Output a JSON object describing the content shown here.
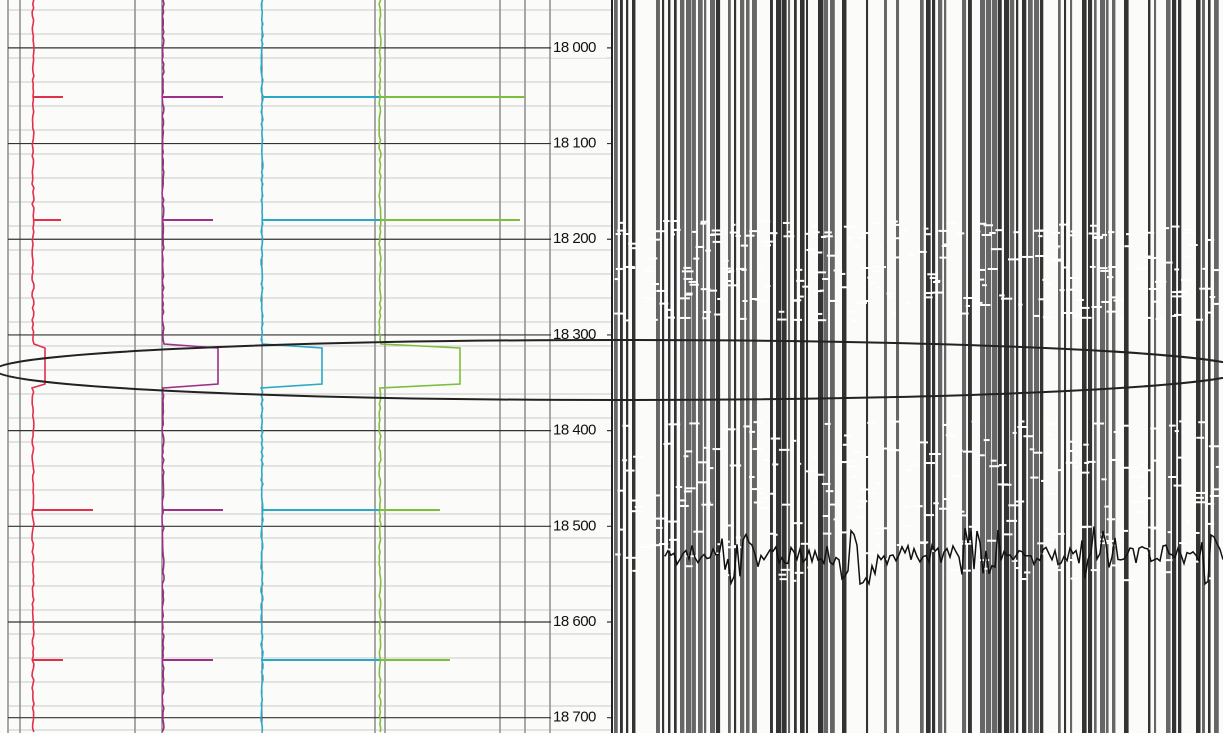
{
  "chart_data": {
    "type": "well-log",
    "ylim": [
      17950,
      18716
    ],
    "yticks": [
      {
        "value": 18000,
        "label": "18 000"
      },
      {
        "value": 18100,
        "label": "18 100"
      },
      {
        "value": 18200,
        "label": "18 200"
      },
      {
        "value": 18300,
        "label": "18 300"
      },
      {
        "value": 18400,
        "label": "18 400"
      },
      {
        "value": 18500,
        "label": "18 500"
      },
      {
        "value": 18600,
        "label": "18 600"
      },
      {
        "value": 18700,
        "label": "18 700"
      }
    ],
    "grid": true
  }
}
